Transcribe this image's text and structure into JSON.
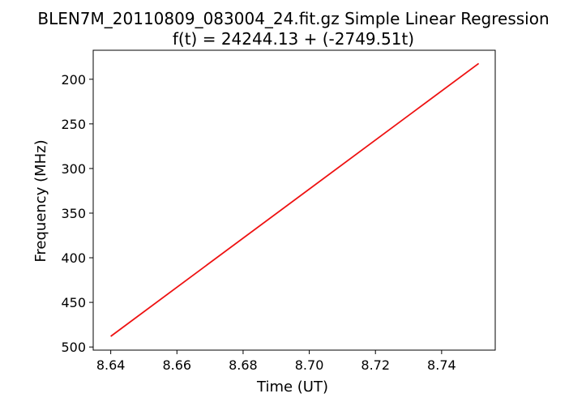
{
  "chart_data": {
    "type": "line",
    "title": "BLEN7M_20110809_083004_24.fit.gz Simple Linear Regression",
    "subtitle": "f(t) = 24244.13 + (-2749.51t)",
    "xlabel": "Time (UT)",
    "ylabel": "Frequency (MHz)",
    "xlim": [
      8.6347,
      8.7562
    ],
    "ylim": [
      503.5,
      167.5
    ],
    "y_inverted": true,
    "grid": false,
    "x_ticks": [
      8.64,
      8.66,
      8.68,
      8.7,
      8.72,
      8.74
    ],
    "x_tick_labels": [
      "8.64",
      "8.66",
      "8.68",
      "8.70",
      "8.72",
      "8.74"
    ],
    "y_ticks": [
      200,
      250,
      300,
      350,
      400,
      450,
      500
    ],
    "y_tick_labels": [
      "200",
      "250",
      "300",
      "350",
      "400",
      "450",
      "500"
    ],
    "series": [
      {
        "color": "#ee1111",
        "x": [
          8.64,
          8.7512
        ],
        "y": [
          488.1,
          182.3
        ]
      }
    ]
  }
}
